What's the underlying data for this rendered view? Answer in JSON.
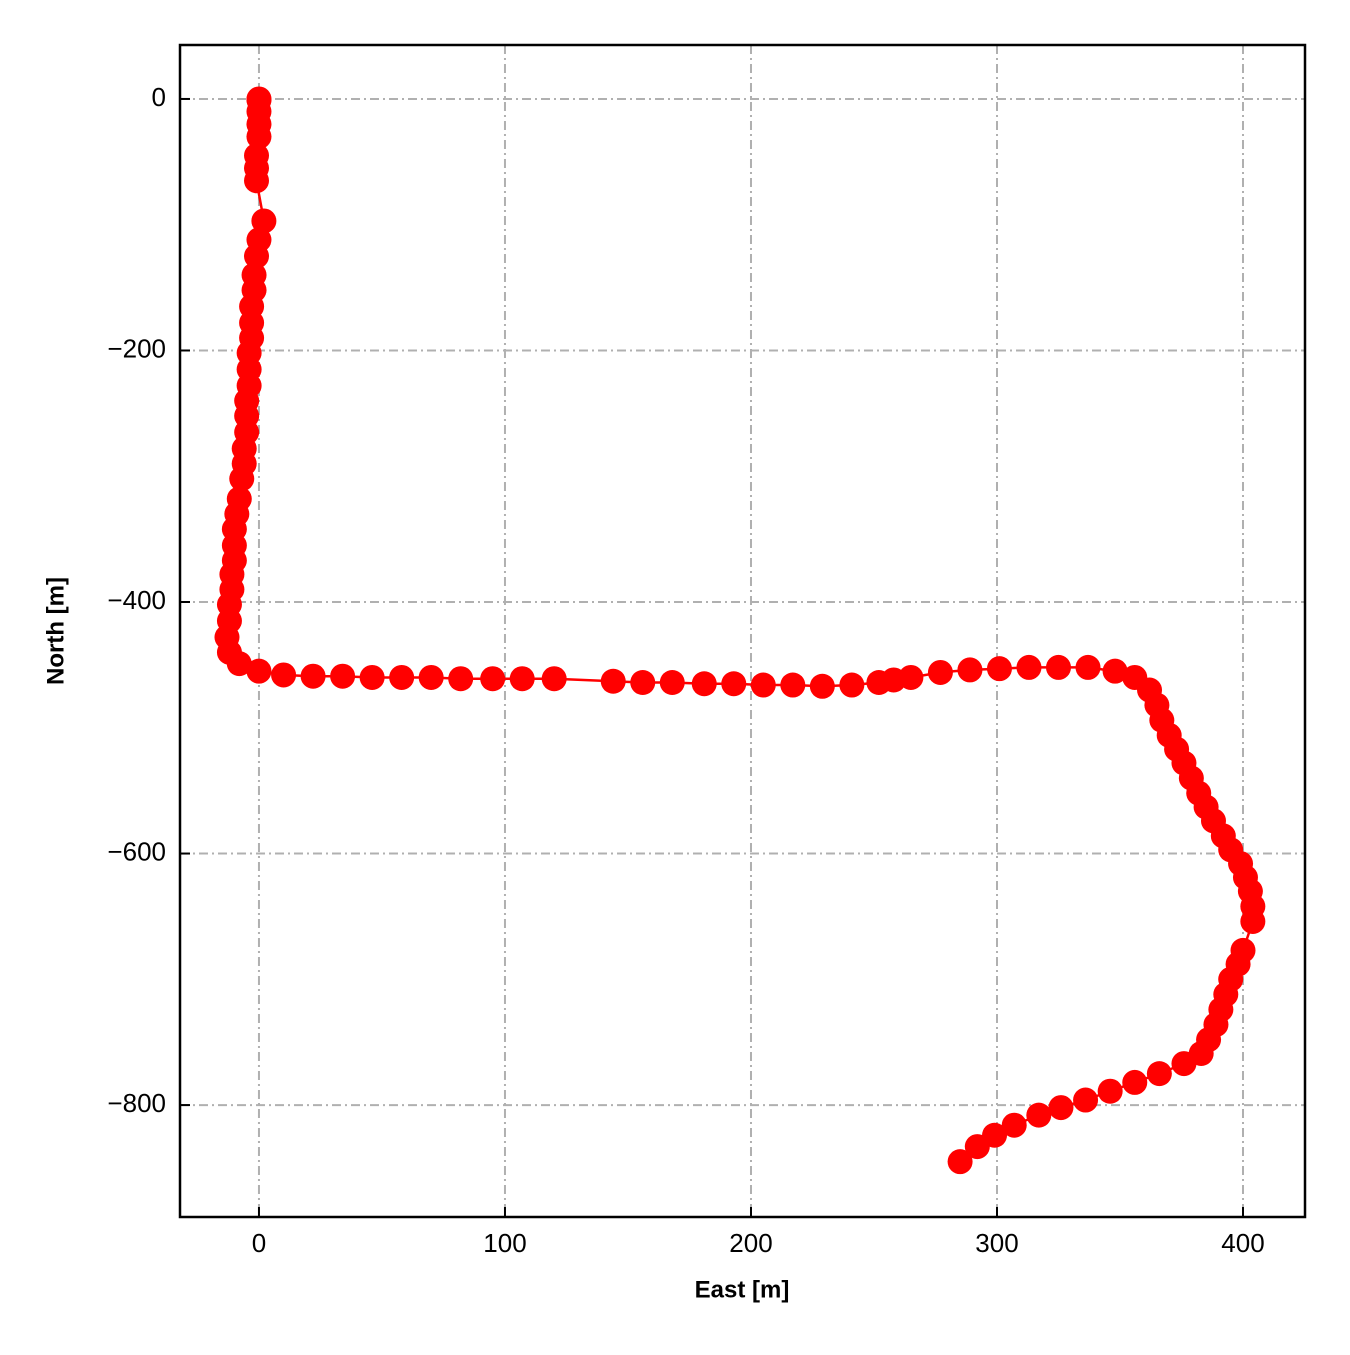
{
  "chart_data": {
    "type": "line",
    "xlabel": "East [m]",
    "ylabel": "North [m]",
    "color": "#ff0000",
    "grid": true,
    "grid_style": "dashdot",
    "grid_color": "#b0b0b0",
    "xlim": [
      -32.1,
      425.2
    ],
    "ylim": [
      -889,
      42.9
    ],
    "xticks": [
      0,
      100,
      200,
      300,
      400
    ],
    "yticks": [
      0,
      {
        "value": -200,
        "label": "−200"
      },
      {
        "value": -400,
        "label": "−400"
      },
      {
        "value": -600,
        "label": "−600"
      },
      {
        "value": -800,
        "label": "−800"
      }
    ],
    "x": [
      0,
      0,
      0,
      0,
      0,
      -1,
      -1,
      -1,
      2,
      0,
      -1,
      -2,
      -2,
      -3,
      -3,
      -3,
      -4,
      -4,
      -4,
      -5,
      -5,
      -5,
      -6,
      -6,
      -7,
      -8,
      -9,
      -10,
      -10,
      -10,
      -11,
      -11,
      -12,
      -12,
      -13,
      -12,
      -8,
      0,
      10,
      22,
      34,
      46,
      58,
      70,
      82,
      95,
      107,
      120,
      144,
      156,
      168,
      181,
      193,
      205,
      217,
      229,
      241,
      252,
      258,
      265,
      277,
      289,
      301,
      313,
      325,
      337,
      348,
      356,
      362,
      365,
      367,
      370,
      373,
      376,
      379,
      382,
      385,
      388,
      392,
      395,
      399,
      401,
      403,
      404,
      404,
      400,
      398,
      395,
      393,
      391,
      389,
      386,
      383,
      376,
      366,
      356,
      346,
      336,
      326,
      317,
      307,
      299,
      292,
      285
    ],
    "values": [
      0,
      -1,
      -10,
      -20,
      -30,
      -45,
      -55,
      -65,
      -97,
      -112,
      -125,
      -140,
      -152,
      -165,
      -178,
      -190,
      -202,
      -215,
      -228,
      -240,
      -252,
      -265,
      -278,
      -290,
      -302,
      -318,
      -330,
      -342,
      -355,
      -367,
      -378,
      -390,
      -402,
      -415,
      -428,
      -440,
      -449,
      -455,
      -458,
      -459,
      -459,
      -460,
      -460,
      -460,
      -461,
      -461,
      -461,
      -461,
      -463,
      -464,
      -464,
      -465,
      -465,
      -466,
      -466,
      -467,
      -466,
      -464,
      -462,
      -460,
      -456,
      -454,
      -453,
      -452,
      -452,
      -452,
      -455,
      -460,
      -470,
      -482,
      -494,
      -506,
      -517,
      -528,
      -540,
      -552,
      -563,
      -574,
      -586,
      -597,
      -608,
      -619,
      -630,
      -642,
      -654,
      -677,
      -688,
      -700,
      -712,
      -724,
      -736,
      -748,
      -759,
      -767,
      -775,
      -782,
      -789,
      -796,
      -802,
      -808,
      -816,
      -824,
      -833,
      -845
    ]
  }
}
